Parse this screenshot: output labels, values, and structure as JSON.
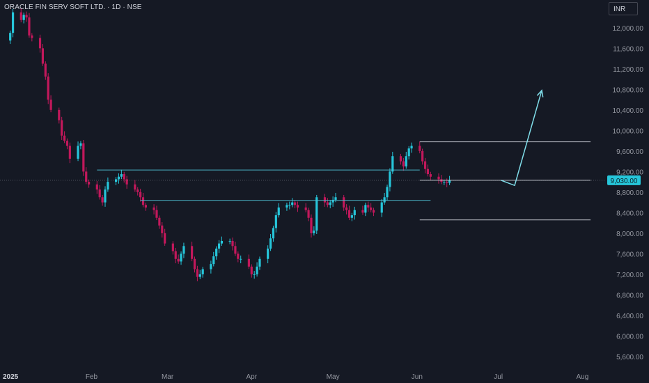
{
  "header": {
    "title": "ORACLE FIN SERV SOFT LTD. · 1D · NSE",
    "currency": "INR"
  },
  "colors": {
    "background": "#151924",
    "up": "#26c6da",
    "down": "#c2185b",
    "drawing": "#4fc3d7",
    "axis_text": "#9598a1"
  },
  "chart_data": {
    "type": "candlestick",
    "title": "ORACLE FIN SERV SOFT LTD. · 1D · NSE",
    "currency": "INR",
    "y_ticks": [
      12000,
      11600,
      11200,
      10800,
      10400,
      10000,
      9600,
      9200,
      8800,
      8400,
      8000,
      7600,
      7200,
      6800,
      6400,
      6000,
      5600
    ],
    "y_tick_labels": [
      "12,000.00",
      "11,600.00",
      "11,200.00",
      "10,800.00",
      "10,400.00",
      "10,000.00",
      "9,600.00",
      "9,200.00",
      "8,800.00",
      "8,400.00",
      "8,000.00",
      "7,600.00",
      "7,200.00",
      "6,800.00",
      "6,400.00",
      "6,000.00",
      "5,600.00"
    ],
    "ylim": [
      5450,
      12350
    ],
    "x_labels": [
      {
        "label": "2025",
        "date": "2025-01-01",
        "bold": true
      },
      {
        "label": "Feb",
        "date": "2025-02-01"
      },
      {
        "label": "Mar",
        "date": "2025-03-01"
      },
      {
        "label": "Apr",
        "date": "2025-04-01"
      },
      {
        "label": "May",
        "date": "2025-05-01"
      },
      {
        "label": "Jun",
        "date": "2025-06-01"
      },
      {
        "label": "Jul",
        "date": "2025-07-01"
      },
      {
        "label": "Aug",
        "date": "2025-08-01"
      }
    ],
    "xlim": [
      "2024-12-30",
      "2025-08-05"
    ],
    "last_price": 9030,
    "last_price_label": "9,030.00",
    "closes": [
      11900,
      12300,
      12150,
      12250,
      12200,
      11850,
      11800,
      11600,
      11300,
      11050,
      10600,
      10400,
      10200,
      9900,
      9800,
      9700,
      9450,
      9700,
      9750,
      9200,
      9000,
      8950,
      8850,
      8700,
      8600,
      8850,
      9000,
      9050,
      9100,
      9150,
      9050,
      8950,
      8850,
      8800,
      8700,
      8550,
      8500,
      8450,
      8300,
      8150,
      8000,
      7800,
      7650,
      7500,
      7450,
      7600,
      7750,
      7500,
      7300,
      7150,
      7200,
      7300,
      7400,
      7550,
      7700,
      7800,
      7850,
      7850,
      7750,
      7600,
      7500,
      7500,
      7350,
      7200,
      7200,
      7350,
      7500,
      7700,
      7900,
      8100,
      8350,
      8500,
      8550,
      8550,
      8600,
      8550,
      8500,
      8450,
      8300,
      8000,
      8050,
      8700,
      8600,
      8550,
      8600,
      8650,
      8700,
      8500,
      8450,
      8300,
      8350,
      8450,
      8400,
      8550,
      8500,
      8450,
      8400,
      8600,
      8700,
      8900,
      9200,
      9500,
      9400,
      9300,
      9500,
      9650,
      9700,
      9600,
      9400,
      9250,
      9150,
      9100,
      9050,
      9000,
      9000,
      8980,
      9030
    ],
    "annotations": [
      {
        "type": "hline",
        "price": 9230,
        "from": "2025-02-03",
        "to": "2025-06-02"
      },
      {
        "type": "hline",
        "price": 8640,
        "from": "2025-02-19",
        "to": "2025-06-06"
      },
      {
        "type": "hline",
        "price": 9780,
        "from": "2025-06-02",
        "to": "2025-08-04"
      },
      {
        "type": "hline",
        "price": 9030,
        "from": "2025-06-02",
        "to": "2025-08-04"
      },
      {
        "type": "hline",
        "price": 8260,
        "from": "2025-06-02",
        "to": "2025-08-04"
      },
      {
        "type": "arrow",
        "points": [
          [
            "2025-07-02",
            9030
          ],
          [
            "2025-07-07",
            8930
          ],
          [
            "2025-07-17",
            10780
          ]
        ]
      }
    ]
  }
}
